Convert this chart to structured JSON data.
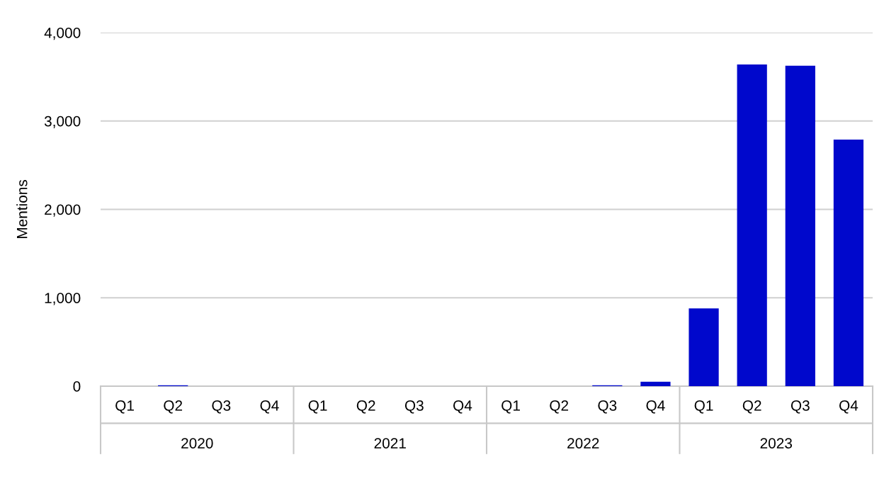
{
  "chart_data": {
    "type": "bar",
    "ylabel": "Mentions",
    "categories": [
      "Q1",
      "Q2",
      "Q3",
      "Q4",
      "Q1",
      "Q2",
      "Q3",
      "Q4",
      "Q1",
      "Q2",
      "Q3",
      "Q4",
      "Q1",
      "Q2",
      "Q3",
      "Q4"
    ],
    "values": [
      0,
      10,
      0,
      0,
      0,
      0,
      0,
      0,
      0,
      0,
      10,
      50,
      880,
      3640,
      3625,
      2790
    ],
    "color": "#0008cc",
    "annotations": [
      "2020",
      "2021",
      "2022",
      "2023"
    ],
    "ylim": [
      0,
      4000
    ],
    "yticks": [
      {
        "value": 0,
        "label": "0"
      },
      {
        "value": 1000,
        "label": "1,000"
      },
      {
        "value": 2000,
        "label": "2,000"
      },
      {
        "value": 3000,
        "label": "3,000"
      },
      {
        "value": 4000,
        "label": "4,000"
      }
    ],
    "grid": "y",
    "legend": false
  }
}
